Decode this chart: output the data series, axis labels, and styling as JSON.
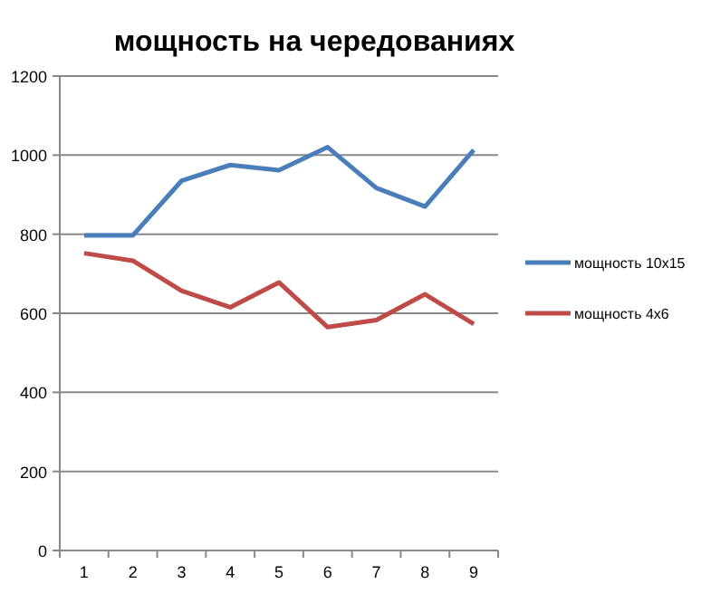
{
  "chart_data": {
    "type": "line",
    "title": "мощность на чередованиях",
    "categories": [
      "1",
      "2",
      "3",
      "4",
      "5",
      "6",
      "7",
      "8",
      "9"
    ],
    "series": [
      {
        "name": "мощность 10x15",
        "color": "#4a7ebb",
        "values": [
          797,
          797,
          935,
          975,
          962,
          1020,
          917,
          870,
          1013
        ]
      },
      {
        "name": "мощность 4x6",
        "color": "#be4b48",
        "values": [
          752,
          733,
          657,
          615,
          678,
          565,
          583,
          648,
          573
        ]
      }
    ],
    "ylim": [
      0,
      1200
    ],
    "yticks": [
      0,
      200,
      400,
      600,
      800,
      1000,
      1200
    ],
    "grid": "y",
    "legend": "right",
    "marker": "none",
    "line_style": "solid"
  }
}
